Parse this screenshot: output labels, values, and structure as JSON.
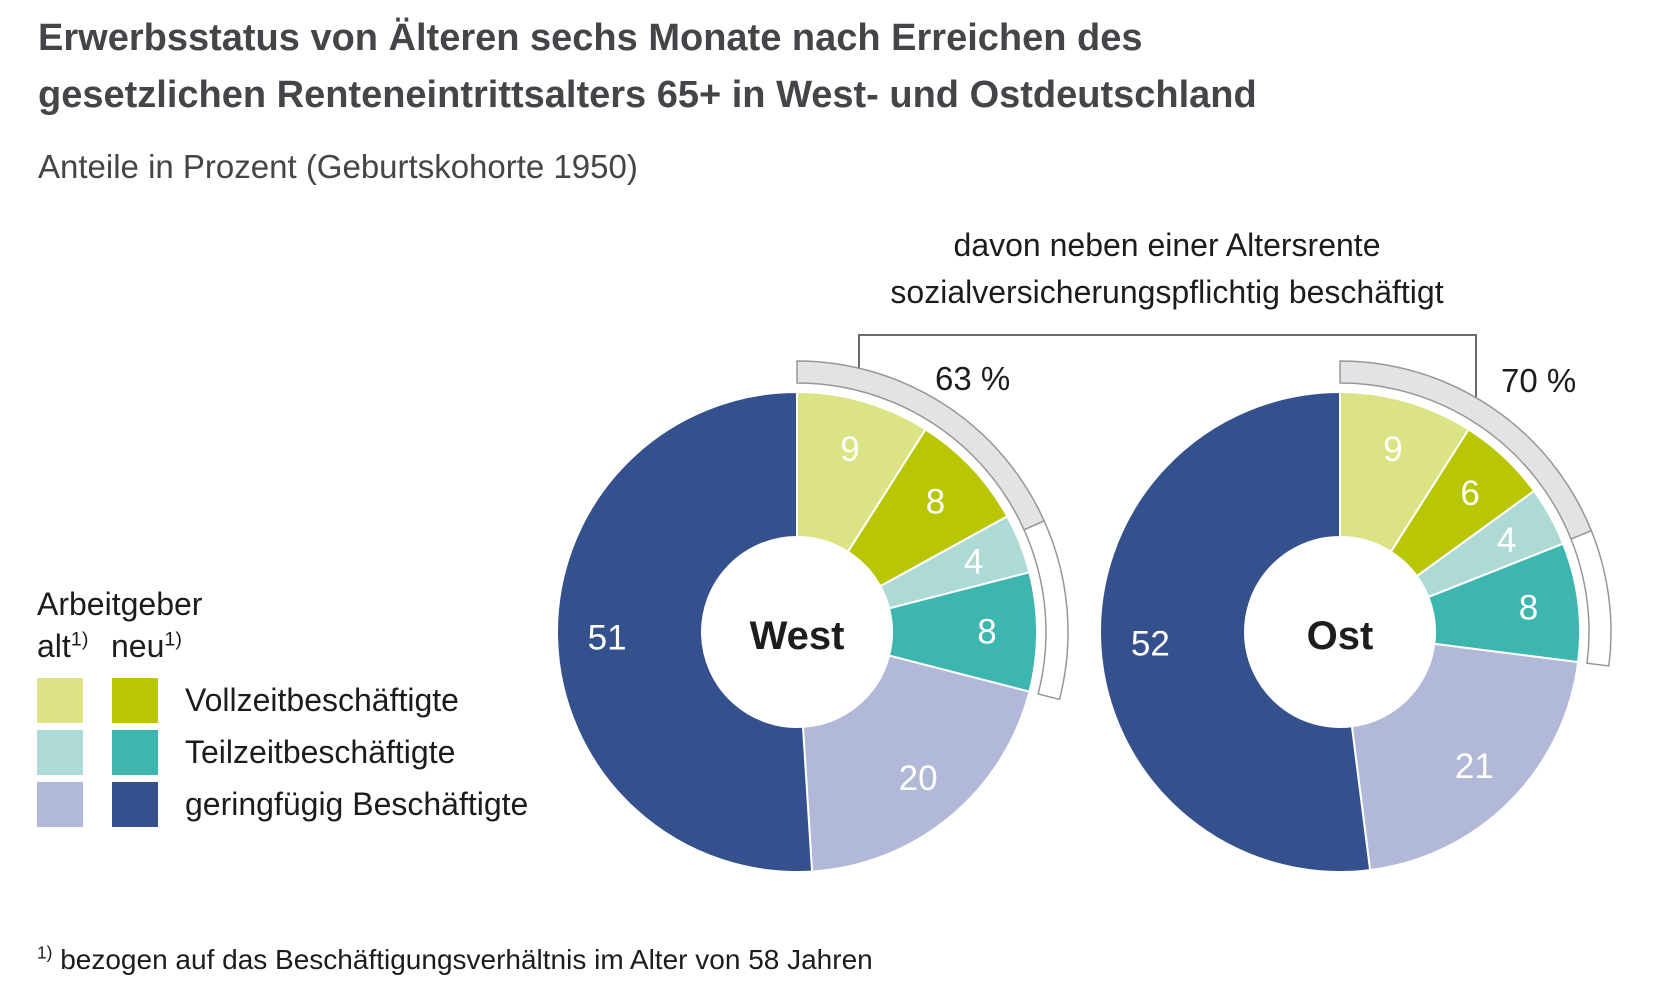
{
  "header": {
    "title_lines": [
      "Erwerbsstatus von Älteren sechs Monate nach Erreichen des",
      "gesetzlichen Renteneintrittsalters 65+ in West- und Ostdeutschland"
    ],
    "subtitle": "Anteile in Prozent (Geburtskohorte 1950)"
  },
  "annotation": {
    "lines": [
      "davon neben einer Altersrente",
      "sozialversicherungspflichtig beschäftigt"
    ]
  },
  "legend": {
    "title": "Arbeitgeber",
    "col_old": "alt",
    "col_new": "neu",
    "sup": "1)",
    "rows": [
      {
        "label": "Vollzeitbeschäftigte"
      },
      {
        "label": "Teilzeitbeschäftigte"
      },
      {
        "label": "geringfügig Beschäftigte"
      }
    ]
  },
  "footnote": {
    "sup": "1)",
    "text": "bezogen auf das Beschäftigungsverhältnis im Alter von 58 Jahren"
  },
  "colors": {
    "alt_vollzeit": "#dce384",
    "neu_vollzeit": "#b8c603",
    "alt_teilzeit": "#aedad6",
    "neu_teilzeit": "#3eb6b0",
    "alt_geringfuegig": "#b2b8d7",
    "neu_geringfuegig": "#34518d",
    "ring_fill": "#e3e3e6",
    "ring_stroke": "#97979b",
    "bracket_line": "#6b6b6b",
    "title_text": "#454549",
    "body_text": "#1c1c1c"
  },
  "chart_data": {
    "type": "donut",
    "unit": "Prozent",
    "title": "Erwerbsstatus von Älteren sechs Monate nach Erreichen des gesetzlichen Renteneintrittsalters 65+ in West- und Ostdeutschland",
    "subtitle": "Anteile in Prozent (Geburtskohorte 1950)",
    "legend_position": "left",
    "categories": [
      "Vollzeitbeschäftigte (Arbeitgeber alt)",
      "Vollzeitbeschäftigte (Arbeitgeber neu)",
      "Teilzeitbeschäftigte (Arbeitgeber alt)",
      "Teilzeitbeschäftigte (Arbeitgeber neu)",
      "geringfügig Beschäftigte (Arbeitgeber alt)",
      "geringfügig Beschäftigte (Arbeitgeber neu)"
    ],
    "color_keys": [
      "alt_vollzeit",
      "neu_vollzeit",
      "alt_teilzeit",
      "neu_teilzeit",
      "alt_geringfuegig",
      "neu_geringfuegig"
    ],
    "series": [
      {
        "name": "West",
        "values": [
          9,
          8,
          4,
          8,
          20,
          51
        ],
        "outer_arc": {
          "label": "63 %",
          "percent": 63,
          "covers_first_n_slices": 4
        }
      },
      {
        "name": "Ost",
        "values": [
          9,
          6,
          4,
          8,
          21,
          52
        ],
        "outer_arc": {
          "label": "70 %",
          "percent": 70,
          "covers_first_n_slices": 4
        }
      }
    ]
  }
}
